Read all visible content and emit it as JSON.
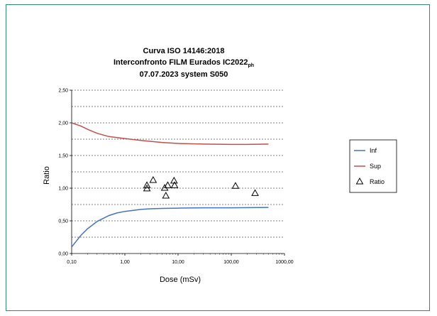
{
  "chart_data": {
    "type": "line",
    "title_lines": [
      "Curva ISO 14146:2018",
      "Interconfronto FILM Eurados IC2022",
      "07.07.2023 system S050"
    ],
    "title_subscript": "ph",
    "xlabel": "Dose (mSv)",
    "ylabel": "Ratio",
    "x_scale": "log",
    "xlim": [
      0.1,
      1000
    ],
    "ylim": [
      0,
      2.5
    ],
    "x_ticks": [
      0.1,
      1,
      10,
      100,
      1000
    ],
    "x_tick_labels": [
      "0,10",
      "1,00",
      "10,00",
      "100,00",
      "1000,00"
    ],
    "y_ticks": [
      0,
      0.5,
      1,
      1.5,
      2,
      2.5
    ],
    "y_tick_labels": [
      "0,00",
      "0,50",
      "1,00",
      "1,50",
      "2,00",
      "2,50"
    ],
    "grid": "horizontal dashed",
    "legend_position": "right",
    "series": [
      {
        "name": "Inf",
        "kind": "line",
        "color": "#4472c4",
        "points": [
          [
            0.1,
            0.1
          ],
          [
            0.15,
            0.28
          ],
          [
            0.2,
            0.38
          ],
          [
            0.3,
            0.49
          ],
          [
            0.5,
            0.58
          ],
          [
            0.7,
            0.62
          ],
          [
            1,
            0.645
          ],
          [
            2,
            0.675
          ],
          [
            3,
            0.685
          ],
          [
            5,
            0.69
          ],
          [
            10,
            0.695
          ],
          [
            30,
            0.7
          ],
          [
            100,
            0.7
          ],
          [
            500,
            0.705
          ]
        ]
      },
      {
        "name": "Sup",
        "kind": "line",
        "color": "#c0504d",
        "points": [
          [
            0.1,
            2.0
          ],
          [
            0.15,
            1.95
          ],
          [
            0.2,
            1.9
          ],
          [
            0.3,
            1.84
          ],
          [
            0.5,
            1.79
          ],
          [
            1,
            1.76
          ],
          [
            2,
            1.73
          ],
          [
            5,
            1.7
          ],
          [
            10,
            1.685
          ],
          [
            30,
            1.675
          ],
          [
            100,
            1.67
          ],
          [
            200,
            1.67
          ],
          [
            500,
            1.675
          ]
        ]
      },
      {
        "name": "Ratio",
        "kind": "scatter",
        "marker": "triangle",
        "color": "#000000",
        "points": [
          [
            2.6,
            1.04
          ],
          [
            2.6,
            0.99
          ],
          [
            3.4,
            1.12
          ],
          [
            5.6,
            1.0
          ],
          [
            5.9,
            0.88
          ],
          [
            6.4,
            1.04
          ],
          [
            8.4,
            1.11
          ],
          [
            8.6,
            1.04
          ],
          [
            120,
            1.03
          ],
          [
            280,
            0.92
          ]
        ]
      }
    ]
  }
}
